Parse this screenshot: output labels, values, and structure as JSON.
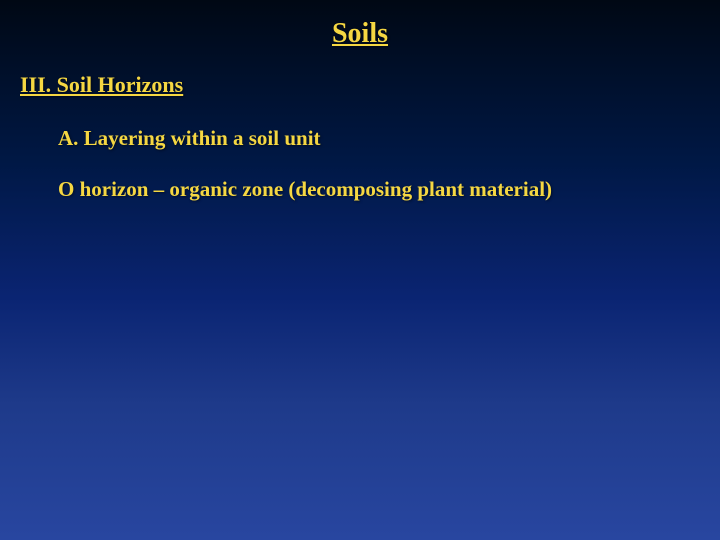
{
  "slide": {
    "title": "Soils",
    "section": "III.  Soil Horizons",
    "subpoint": "A.   Layering within a soil unit",
    "body1": "O horizon – organic zone (decomposing plant material)"
  },
  "style": {
    "background_gradient": [
      "#000814",
      "#001845",
      "#0a2472",
      "#1e3a8a",
      "#2846a0"
    ],
    "text_color": "#f5d742",
    "font_family": "Times New Roman",
    "title_fontsize": 28,
    "heading_fontsize": 22,
    "body_fontsize": 21,
    "font_weight": "bold",
    "title_underline": true,
    "section_underline": true
  }
}
